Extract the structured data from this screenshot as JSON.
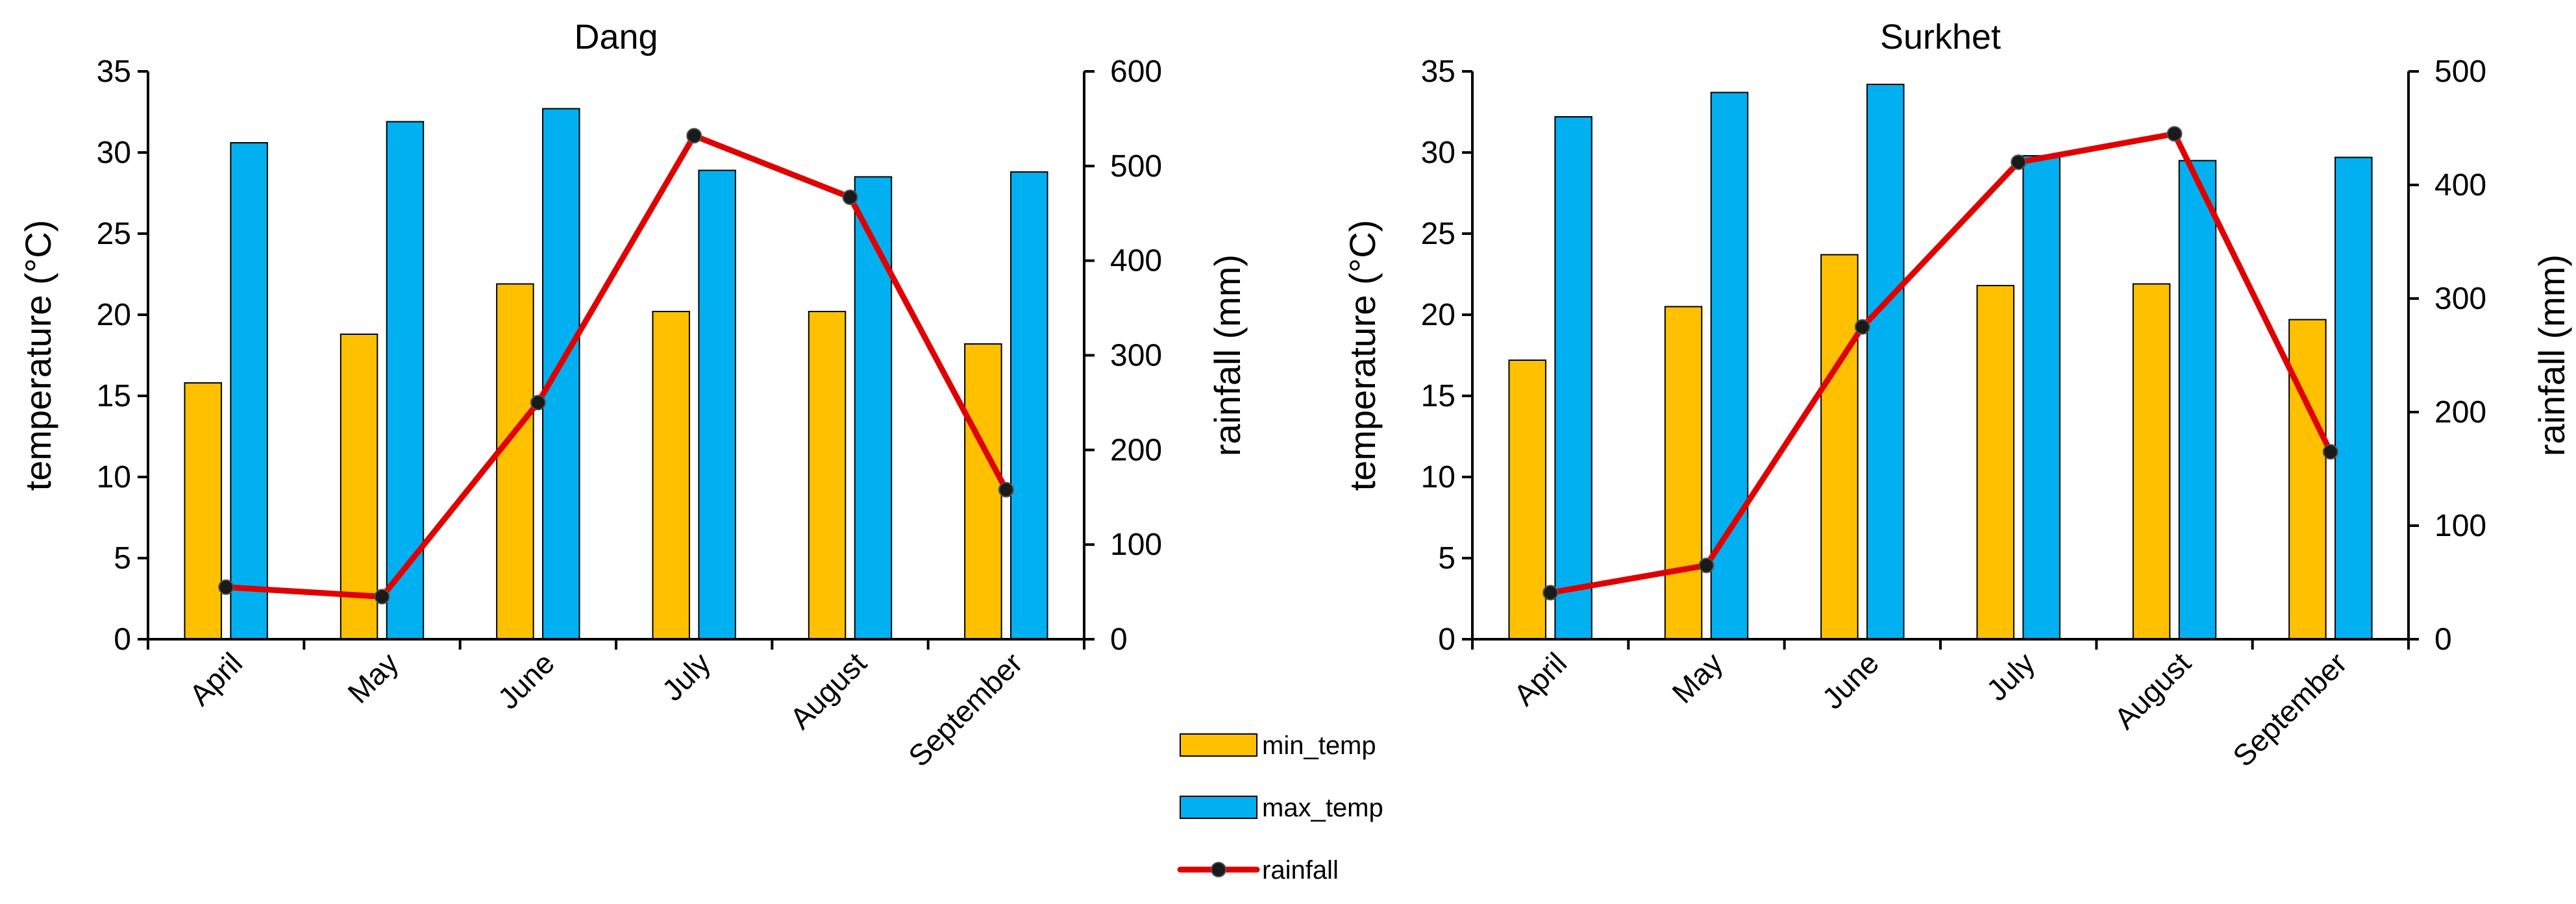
{
  "chart_data": [
    {
      "type": "bar",
      "title": "Dang",
      "categories": [
        "April",
        "May",
        "June",
        "July",
        "August",
        "September"
      ],
      "series": [
        {
          "name": "min_temp",
          "axis": "left",
          "kind": "bar",
          "values": [
            15.8,
            18.8,
            21.9,
            20.2,
            20.2,
            18.2
          ]
        },
        {
          "name": "max_temp",
          "axis": "left",
          "kind": "bar",
          "values": [
            30.6,
            31.9,
            32.7,
            28.9,
            28.5,
            28.8
          ]
        },
        {
          "name": "rainfall",
          "axis": "right",
          "kind": "line",
          "values": [
            55,
            45,
            250,
            532,
            467,
            158
          ]
        }
      ],
      "ylabel": "temperature (°C)",
      "ylim": [
        0,
        35
      ],
      "yticks": [
        0,
        5,
        10,
        15,
        20,
        25,
        30,
        35
      ],
      "y2label": "rainfall (mm)",
      "y2lim": [
        0,
        600
      ],
      "y2ticks": [
        0,
        100,
        200,
        300,
        400,
        500,
        600
      ]
    },
    {
      "type": "bar",
      "title": "Surkhet",
      "categories": [
        "April",
        "May",
        "June",
        "July",
        "August",
        "September"
      ],
      "series": [
        {
          "name": "min_temp",
          "axis": "left",
          "kind": "bar",
          "values": [
            17.2,
            20.5,
            23.7,
            21.8,
            21.9,
            19.7
          ]
        },
        {
          "name": "max_temp",
          "axis": "left",
          "kind": "bar",
          "values": [
            32.2,
            33.7,
            34.2,
            29.8,
            29.5,
            29.7
          ]
        },
        {
          "name": "rainfall",
          "axis": "right",
          "kind": "line",
          "values": [
            41,
            65,
            275,
            420,
            445,
            165
          ]
        }
      ],
      "ylabel": "temperature (°C)",
      "ylim": [
        0,
        35
      ],
      "yticks": [
        0,
        5,
        10,
        15,
        20,
        25,
        30,
        35
      ],
      "y2label": "rainfall (mm)",
      "y2lim": [
        0,
        500
      ],
      "y2ticks": [
        0,
        100,
        200,
        300,
        400,
        500
      ]
    }
  ],
  "legend": [
    {
      "name": "min_temp",
      "kind": "bar"
    },
    {
      "name": "max_temp",
      "kind": "bar"
    },
    {
      "name": "rainfall",
      "kind": "line"
    }
  ],
  "colors": {
    "min_temp": "#FFC000",
    "max_temp": "#00B0F0",
    "rainfall": "#E00000",
    "marker": "#1a1a1a"
  }
}
